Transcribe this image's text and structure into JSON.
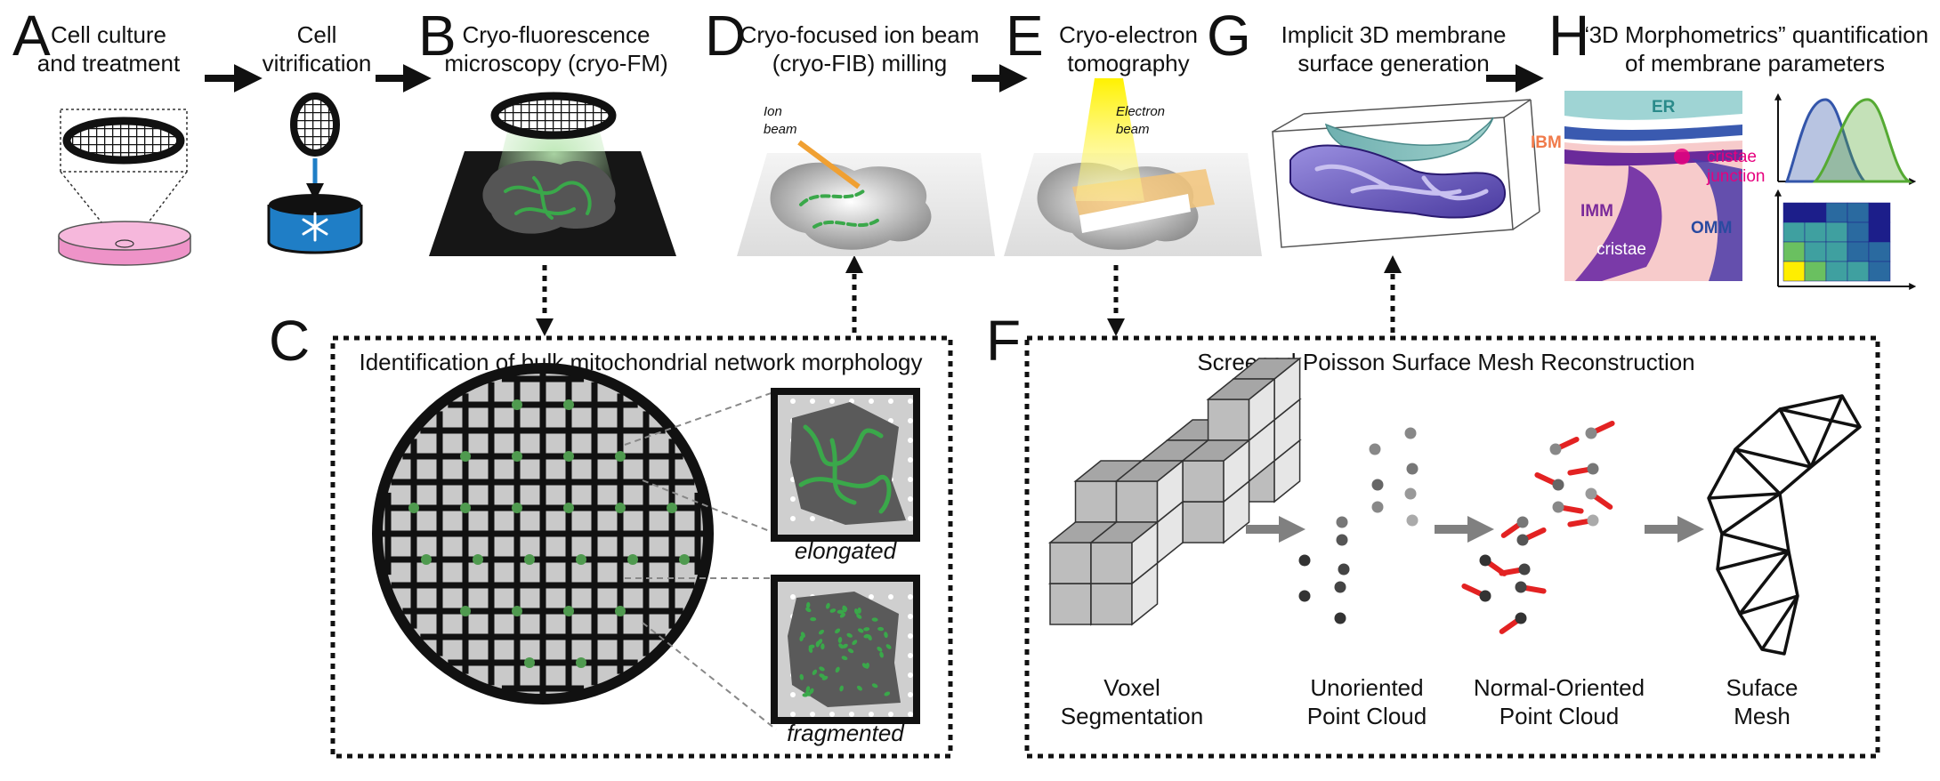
{
  "panels": {
    "A": {
      "letter": "A",
      "title_lines": [
        "Cell culture",
        "and treatment"
      ]
    },
    "A2": {
      "title_lines": [
        "Cell",
        "vitrification"
      ]
    },
    "B": {
      "letter": "B",
      "title_lines": [
        "Cryo-fluorescence",
        "microscopy (cryo-FM)"
      ]
    },
    "C": {
      "letter": "C",
      "title": "Identification of bulk mitochondrial network morphology",
      "label_elongated": "elongated",
      "label_fragmented": "fragmented"
    },
    "D": {
      "letter": "D",
      "title_lines": [
        "Cryo-focused ion beam",
        "(cryo-FIB) milling"
      ],
      "beam_lines": [
        "Ion",
        "beam"
      ]
    },
    "E": {
      "letter": "E",
      "title_lines": [
        "Cryo-electron",
        "tomography"
      ],
      "beam_lines": [
        "Electron",
        "beam"
      ]
    },
    "F": {
      "letter": "F",
      "title": "Screened Poisson Surface Mesh Reconstruction",
      "steps": [
        {
          "lines": [
            "Voxel",
            "Segmentation"
          ]
        },
        {
          "lines": [
            "Unoriented",
            "Point Cloud"
          ]
        },
        {
          "lines": [
            "Normal-Oriented",
            "Point Cloud"
          ]
        },
        {
          "lines": [
            "Suface",
            "Mesh"
          ]
        }
      ]
    },
    "G": {
      "letter": "G",
      "title_lines": [
        "Implicit 3D membrane",
        "surface generation"
      ]
    },
    "H": {
      "letter": "H",
      "title_lines": [
        "“3D Morphometrics” quantification",
        "of membrane parameters"
      ],
      "labels": {
        "er": "ER",
        "ibm": "IBM",
        "cristae_junction_lines": [
          "cristae",
          "junction"
        ],
        "imm": "IMM",
        "omm": "OMM",
        "cristae": "cristae"
      }
    }
  },
  "colors": {
    "dish_pink": "#ee93c8",
    "vitrification_blue": "#1f7ec6",
    "mito_green": "#3aa84a",
    "beam_orange": "#f0a032",
    "beam_yellow": "#fff200",
    "normal_red": "#e32222",
    "er_teal": "#7cc4c4",
    "ibm_orange": "#f07a4a",
    "junction_pink": "#e6007e",
    "imm_purple": "#7a2a9a",
    "omm_blue": "#2a4aa0",
    "hist_blue": "#3355aa",
    "hist_green": "#55aa33",
    "heatmap_dark": "#1c1e8a",
    "heatmap_yellow": "#ffee00"
  }
}
